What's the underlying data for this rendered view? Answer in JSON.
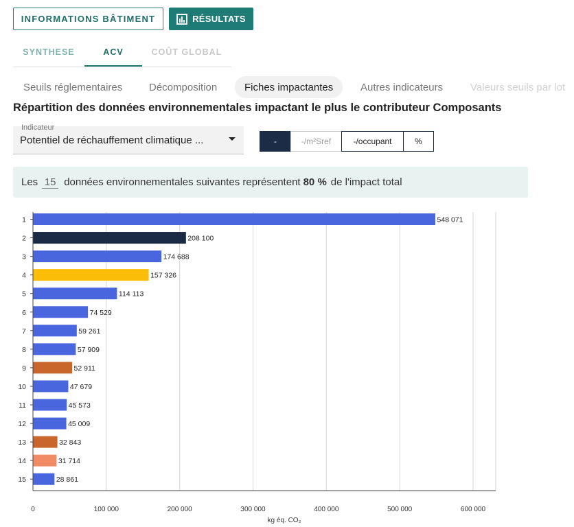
{
  "top_buttons": {
    "info_label": "INFORMATIONS BÂTIMENT",
    "results_label": "RÉSULTATS"
  },
  "main_tabs": [
    {
      "label": "SYNTHESE"
    },
    {
      "label": "ACV"
    },
    {
      "label": "COÛT GLOBAL"
    }
  ],
  "sub_tabs": [
    {
      "label": "Seuils réglementaires"
    },
    {
      "label": "Décomposition"
    },
    {
      "label": "Fiches impactantes"
    },
    {
      "label": "Autres indicateurs"
    },
    {
      "label": "Valeurs seuils par lot"
    }
  ],
  "heading": "Répartition des données environnementales impactant le plus le contributeur Composants",
  "indicator": {
    "label": "Indicateur",
    "value": "Potentiel de réchauffement climatique ..."
  },
  "unit_buttons": [
    {
      "label": "-"
    },
    {
      "label": "-/m²Sref"
    },
    {
      "label": "-/occupant"
    },
    {
      "label": "%"
    }
  ],
  "summary": {
    "prefix": "Les",
    "count": "15",
    "middle": "données environnementales suivantes représentent",
    "percent": "80 %",
    "suffix": "de l'impact total"
  },
  "colors": {
    "blue": "#4a66de",
    "navy": "#1c2b45",
    "yellow": "#fbbd08",
    "brown": "#c8662b",
    "salmon": "#f08b66",
    "teal": "#1e7b75"
  },
  "chart_data": {
    "type": "bar",
    "orientation": "horizontal",
    "categories": [
      "1",
      "2",
      "3",
      "4",
      "5",
      "6",
      "7",
      "8",
      "9",
      "10",
      "11",
      "12",
      "13",
      "14",
      "15"
    ],
    "values": [
      548071,
      208100,
      174688,
      157326,
      114113,
      74529,
      59261,
      57909,
      52911,
      47679,
      45573,
      45009,
      32843,
      31714,
      28861
    ],
    "value_labels": [
      "548 071",
      "208 100",
      "174 688",
      "157 326",
      "114 113",
      "74 529",
      "59 261",
      "57 909",
      "52 911",
      "47 679",
      "45 573",
      "45 009",
      "32 843",
      "31 714",
      "28 861"
    ],
    "bar_colors": [
      "#4a66de",
      "#1c2b45",
      "#4a66de",
      "#fbbd08",
      "#4a66de",
      "#4a66de",
      "#4a66de",
      "#4a66de",
      "#c8662b",
      "#4a66de",
      "#4a66de",
      "#4a66de",
      "#c8662b",
      "#f08b66",
      "#4a66de"
    ],
    "x_ticks": [
      0,
      100000,
      200000,
      300000,
      400000,
      500000,
      600000
    ],
    "x_tick_labels": [
      "0",
      "100 000",
      "200 000",
      "300 000",
      "400 000",
      "500 000",
      "600 000"
    ],
    "xlabel": "kg éq. CO₂",
    "xlim": [
      0,
      630000
    ],
    "grid": "vertical"
  }
}
